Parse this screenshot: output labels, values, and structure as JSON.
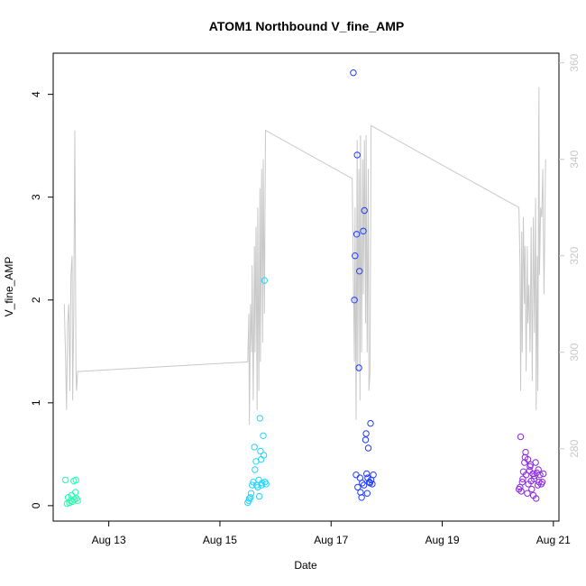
{
  "chart_data": {
    "type": "scatter",
    "title": "ATOM1 Northbound V_fine_AMP",
    "xlabel": "Date",
    "ylabel": "V_fine_AMP",
    "x_ticks": [
      {
        "label": "Aug 13",
        "day": 13
      },
      {
        "label": "Aug 15",
        "day": 15
      },
      {
        "label": "Aug 17",
        "day": 17
      },
      {
        "label": "Aug 19",
        "day": 19
      },
      {
        "label": "Aug 21",
        "day": 21
      }
    ],
    "y_ticks": [
      "0",
      "1",
      "2",
      "3",
      "4"
    ],
    "y2_ticks": [
      "280",
      "300",
      "320",
      "340",
      "360"
    ],
    "xlim_days": [
      12.0,
      21.1
    ],
    "ylim": [
      -0.15,
      4.4
    ],
    "y2lim": [
      265,
      362
    ],
    "grid": false,
    "colors": {
      "line": "#c8c8c8",
      "right_axis": "#c8c8c8",
      "series": [
        "#1fffb0",
        "#1fd6ff",
        "#1f3cff",
        "#8a2be2"
      ]
    },
    "series": [
      {
        "points": [
          [
            12.22,
            0.25
          ],
          [
            12.25,
            0.02
          ],
          [
            12.27,
            0.08
          ],
          [
            12.29,
            0.03
          ],
          [
            12.31,
            0.05
          ],
          [
            12.33,
            0.1
          ],
          [
            12.35,
            0.04
          ],
          [
            12.37,
            0.24
          ],
          [
            12.38,
            0.06
          ],
          [
            12.4,
            0.13
          ],
          [
            12.41,
            0.25
          ],
          [
            12.42,
            0.07
          ],
          [
            12.44,
            0.05
          ]
        ]
      },
      {
        "points": [
          [
            15.5,
            0.03
          ],
          [
            15.52,
            0.05
          ],
          [
            15.53,
            0.07
          ],
          [
            15.55,
            0.08
          ],
          [
            15.56,
            0.12
          ],
          [
            15.58,
            0.2
          ],
          [
            15.6,
            0.23
          ],
          [
            15.62,
            0.57
          ],
          [
            15.63,
            0.35
          ],
          [
            15.65,
            0.43
          ],
          [
            15.66,
            0.2
          ],
          [
            15.68,
            0.18
          ],
          [
            15.7,
            0.25
          ],
          [
            15.71,
            0.09
          ],
          [
            15.72,
            0.85
          ],
          [
            15.73,
            0.53
          ],
          [
            15.74,
            0.45
          ],
          [
            15.75,
            0.2
          ],
          [
            15.76,
            0.22
          ],
          [
            15.78,
            0.68
          ],
          [
            15.79,
            0.49
          ],
          [
            15.8,
            2.19
          ],
          [
            15.81,
            0.23
          ],
          [
            15.83,
            0.21
          ]
        ]
      },
      {
        "points": [
          [
            17.4,
            4.21
          ],
          [
            17.42,
            2.0
          ],
          [
            17.43,
            2.43
          ],
          [
            17.45,
            0.3
          ],
          [
            17.46,
            2.64
          ],
          [
            17.47,
            3.41
          ],
          [
            17.48,
            0.18
          ],
          [
            17.5,
            1.34
          ],
          [
            17.51,
            2.28
          ],
          [
            17.52,
            0.27
          ],
          [
            17.53,
            0.13
          ],
          [
            17.55,
            0.08
          ],
          [
            17.56,
            0.22
          ],
          [
            17.58,
            2.67
          ],
          [
            17.59,
            0.2
          ],
          [
            17.6,
            2.87
          ],
          [
            17.62,
            0.64
          ],
          [
            17.63,
            0.7
          ],
          [
            17.64,
            0.31
          ],
          [
            17.65,
            0.12
          ],
          [
            17.66,
            0.27
          ],
          [
            17.67,
            0.56
          ],
          [
            17.69,
            0.23
          ],
          [
            17.7,
            0.22
          ],
          [
            17.71,
            0.8
          ],
          [
            17.72,
            0.25
          ],
          [
            17.74,
            0.21
          ],
          [
            17.76,
            0.3
          ]
        ]
      },
      {
        "points": [
          [
            20.38,
            0.16
          ],
          [
            20.4,
            0.18
          ],
          [
            20.41,
            0.67
          ],
          [
            20.42,
            0.14
          ],
          [
            20.44,
            0.23
          ],
          [
            20.45,
            0.26
          ],
          [
            20.46,
            0.33
          ],
          [
            20.48,
            0.42
          ],
          [
            20.49,
            0.47
          ],
          [
            20.5,
            0.52
          ],
          [
            20.51,
            0.3
          ],
          [
            20.53,
            0.12
          ],
          [
            20.54,
            0.45
          ],
          [
            20.55,
            0.21
          ],
          [
            20.57,
            0.34
          ],
          [
            20.58,
            0.38
          ],
          [
            20.59,
            0.4
          ],
          [
            20.6,
            0.24
          ],
          [
            20.61,
            0.16
          ],
          [
            20.63,
            0.31
          ],
          [
            20.64,
            0.1
          ],
          [
            20.65,
            0.26
          ],
          [
            20.66,
            0.29
          ],
          [
            20.68,
            0.42
          ],
          [
            20.69,
            0.07
          ],
          [
            20.7,
            0.32
          ],
          [
            20.72,
            0.2
          ],
          [
            20.73,
            0.35
          ],
          [
            20.74,
            0.23
          ],
          [
            20.76,
            0.3
          ],
          [
            20.78,
            0.21
          ],
          [
            20.8,
            0.23
          ],
          [
            20.82,
            0.31
          ]
        ]
      }
    ],
    "secondary_line": {
      "axis": "right",
      "points": [
        [
          12.2,
          310
        ],
        [
          12.22,
          300
        ],
        [
          12.24,
          288
        ],
        [
          12.26,
          306
        ],
        [
          12.28,
          310
        ],
        [
          12.3,
          292
        ],
        [
          12.32,
          316
        ],
        [
          12.34,
          320
        ],
        [
          12.35,
          290
        ],
        [
          12.37,
          308
        ],
        [
          12.39,
          346
        ],
        [
          12.41,
          296
        ],
        [
          12.42,
          292
        ],
        [
          12.44,
          296
        ],
        [
          15.5,
          298
        ],
        [
          15.52,
          308
        ],
        [
          15.53,
          285
        ],
        [
          15.55,
          310
        ],
        [
          15.57,
          300
        ],
        [
          15.58,
          318
        ],
        [
          15.6,
          290
        ],
        [
          15.62,
          322
        ],
        [
          15.63,
          300
        ],
        [
          15.65,
          326
        ],
        [
          15.67,
          288
        ],
        [
          15.68,
          330
        ],
        [
          15.7,
          292
        ],
        [
          15.72,
          334
        ],
        [
          15.73,
          298
        ],
        [
          15.75,
          338
        ],
        [
          15.77,
          302
        ],
        [
          15.78,
          340
        ],
        [
          15.8,
          308
        ],
        [
          15.82,
          346
        ],
        [
          17.38,
          336
        ],
        [
          17.4,
          316
        ],
        [
          17.42,
          298
        ],
        [
          17.43,
          330
        ],
        [
          17.45,
          286
        ],
        [
          17.47,
          344
        ],
        [
          17.48,
          296
        ],
        [
          17.5,
          338
        ],
        [
          17.52,
          290
        ],
        [
          17.53,
          345
        ],
        [
          17.55,
          300
        ],
        [
          17.57,
          340
        ],
        [
          17.58,
          312
        ],
        [
          17.6,
          344
        ],
        [
          17.62,
          306
        ],
        [
          17.63,
          345
        ],
        [
          17.65,
          300
        ],
        [
          17.67,
          338
        ],
        [
          17.68,
          292
        ],
        [
          17.7,
          296
        ],
        [
          17.72,
          347
        ],
        [
          20.38,
          330
        ],
        [
          20.4,
          318
        ],
        [
          20.41,
          292
        ],
        [
          20.43,
          325
        ],
        [
          20.44,
          300
        ],
        [
          20.46,
          328
        ],
        [
          20.48,
          310
        ],
        [
          20.49,
          322
        ],
        [
          20.51,
          296
        ],
        [
          20.53,
          322
        ],
        [
          20.54,
          306
        ],
        [
          20.56,
          314
        ],
        [
          20.58,
          300
        ],
        [
          20.6,
          326
        ],
        [
          20.62,
          294
        ],
        [
          20.64,
          328
        ],
        [
          20.66,
          304
        ],
        [
          20.68,
          332
        ],
        [
          20.69,
          288
        ],
        [
          20.71,
          320
        ],
        [
          20.72,
          292
        ],
        [
          20.74,
          355
        ],
        [
          20.75,
          316
        ],
        [
          20.77,
          330
        ],
        [
          20.79,
          328
        ],
        [
          20.81,
          338
        ],
        [
          20.83,
          312
        ],
        [
          20.86,
          340
        ]
      ]
    }
  }
}
